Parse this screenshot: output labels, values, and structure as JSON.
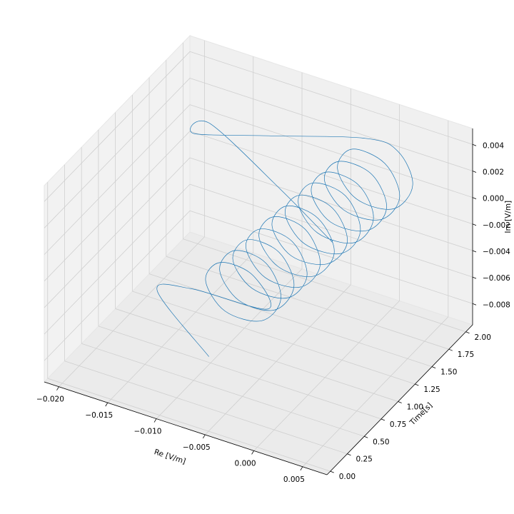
{
  "chart_data": {
    "type": "line3d",
    "color": "#1f77b4",
    "xlabel": "Re [V/m]",
    "ylabel": "Time[s]",
    "zlabel": "Im [V/m]",
    "xlim": [
      -0.0215,
      0.0075
    ],
    "ylim": [
      -0.05,
      2.1
    ],
    "zlim": [
      -0.0096,
      0.0052
    ],
    "xticks": [
      {
        "value": -0.02,
        "label": "−0.020"
      },
      {
        "value": -0.015,
        "label": "−0.015"
      },
      {
        "value": -0.01,
        "label": "−0.010"
      },
      {
        "value": -0.005,
        "label": "−0.005"
      },
      {
        "value": 0,
        "label": "0.000"
      },
      {
        "value": 0.005,
        "label": "0.005"
      }
    ],
    "yticks": [
      {
        "value": 0,
        "label": "0.00"
      },
      {
        "value": 0.25,
        "label": "0.25"
      },
      {
        "value": 0.5,
        "label": "0.50"
      },
      {
        "value": 0.75,
        "label": "0.75"
      },
      {
        "value": 1,
        "label": "1.00"
      },
      {
        "value": 1.25,
        "label": "1.25"
      },
      {
        "value": 1.5,
        "label": "1.50"
      },
      {
        "value": 1.75,
        "label": "1.75"
      },
      {
        "value": 2,
        "label": "2.00"
      }
    ],
    "zticks": [
      {
        "value": -0.008,
        "label": "−0.008"
      },
      {
        "value": -0.006,
        "label": "−0.006"
      },
      {
        "value": -0.004,
        "label": "−0.004"
      },
      {
        "value": -0.002,
        "label": "−0.002"
      },
      {
        "value": 0,
        "label": "0.000"
      },
      {
        "value": 0.002,
        "label": "0.002"
      },
      {
        "value": 0.004,
        "label": "0.004"
      }
    ],
    "grid": true,
    "x": [
      -0.006,
      -0.012,
      -0.009,
      -0.001,
      -0.0027,
      -0.0062,
      -0.0079,
      -0.0061,
      -0.0025,
      -0.0007,
      -0.0024,
      -0.0058,
      -0.0075,
      -0.0057,
      -0.0022,
      -0.0004,
      -0.0021,
      -0.0055,
      -0.0072,
      -0.0054,
      -0.0019,
      -0.0001,
      -0.0018,
      -0.0052,
      -0.0069,
      -0.0051,
      -0.0016,
      0.0002,
      -0.0015,
      -0.0049,
      -0.0066,
      -0.0048,
      -0.0013,
      0.0006,
      -0.0012,
      -0.0046,
      -0.0063,
      -0.0045,
      -0.001,
      0.0009,
      -0.0008,
      -0.0043,
      -0.006,
      -0.0042,
      -0.0006,
      0.0012,
      -0.0005,
      -0.004,
      -0.0057,
      -0.0039,
      -0.0003,
      0.0015,
      -0.0002,
      -0.0037,
      -0.0054,
      -0.0036,
      0.0,
      0.0018,
      0.0001,
      -0.0034,
      -0.0051,
      -0.0033,
      0.0003,
      0.0021,
      0.0004,
      -0.0031,
      -0.0048,
      -0.003,
      0.0006,
      0.0024,
      0.0007,
      -0.0028,
      -0.012,
      -0.019,
      -0.017,
      -0.008,
      -0.002
    ],
    "y": [
      0.15,
      0.25,
      0.32,
      0.3,
      0.325,
      0.35,
      0.375,
      0.4,
      0.425,
      0.45,
      0.475,
      0.5,
      0.525,
      0.55,
      0.575,
      0.6,
      0.625,
      0.65,
      0.675,
      0.7,
      0.725,
      0.75,
      0.775,
      0.8,
      0.825,
      0.85,
      0.875,
      0.9,
      0.925,
      0.95,
      0.975,
      1.0,
      1.025,
      1.05,
      1.075,
      1.1,
      1.125,
      1.15,
      1.175,
      1.2,
      1.225,
      1.25,
      1.275,
      1.3,
      1.325,
      1.35,
      1.375,
      1.4,
      1.425,
      1.45,
      1.475,
      1.5,
      1.525,
      1.55,
      1.575,
      1.6,
      1.625,
      1.65,
      1.675,
      1.7,
      1.725,
      1.75,
      1.775,
      1.8,
      1.825,
      1.85,
      1.875,
      1.9,
      1.925,
      1.95,
      1.975,
      2.0,
      1.9,
      1.8,
      1.75,
      1.5,
      1.4
    ],
    "z": [
      -0.005,
      -0.002,
      -0.0015,
      -0.001,
      0.001,
      0.001,
      -0.0009,
      -0.0029,
      -0.0029,
      -0.0009,
      0.0012,
      0.0012,
      -0.0008,
      -0.0028,
      -0.0028,
      -0.0007,
      0.0013,
      0.0013,
      -0.0007,
      -0.0026,
      -0.0026,
      -0.0006,
      0.0014,
      0.0014,
      -0.0005,
      -0.0025,
      -0.0025,
      -0.0005,
      0.0016,
      0.0016,
      -0.0004,
      -0.0024,
      -0.0024,
      -0.0003,
      0.0017,
      0.0017,
      -0.0003,
      -0.0023,
      -0.0022,
      -0.0002,
      0.0018,
      0.0018,
      -0.0001,
      -0.0021,
      -0.0021,
      -0.0001,
      0.002,
      0.002,
      0.0,
      -0.002,
      -0.002,
      0.0001,
      0.0021,
      0.0021,
      0.0001,
      -0.0019,
      -0.0018,
      0.0002,
      0.0022,
      0.0022,
      0.0003,
      -0.0017,
      -0.0017,
      0.0003,
      0.0023,
      0.0024,
      0.0004,
      -0.0016,
      -0.0016,
      0.0005,
      0.0025,
      0.0025,
      0.001,
      0.0,
      0.0015,
      0.0,
      -0.002
    ]
  }
}
